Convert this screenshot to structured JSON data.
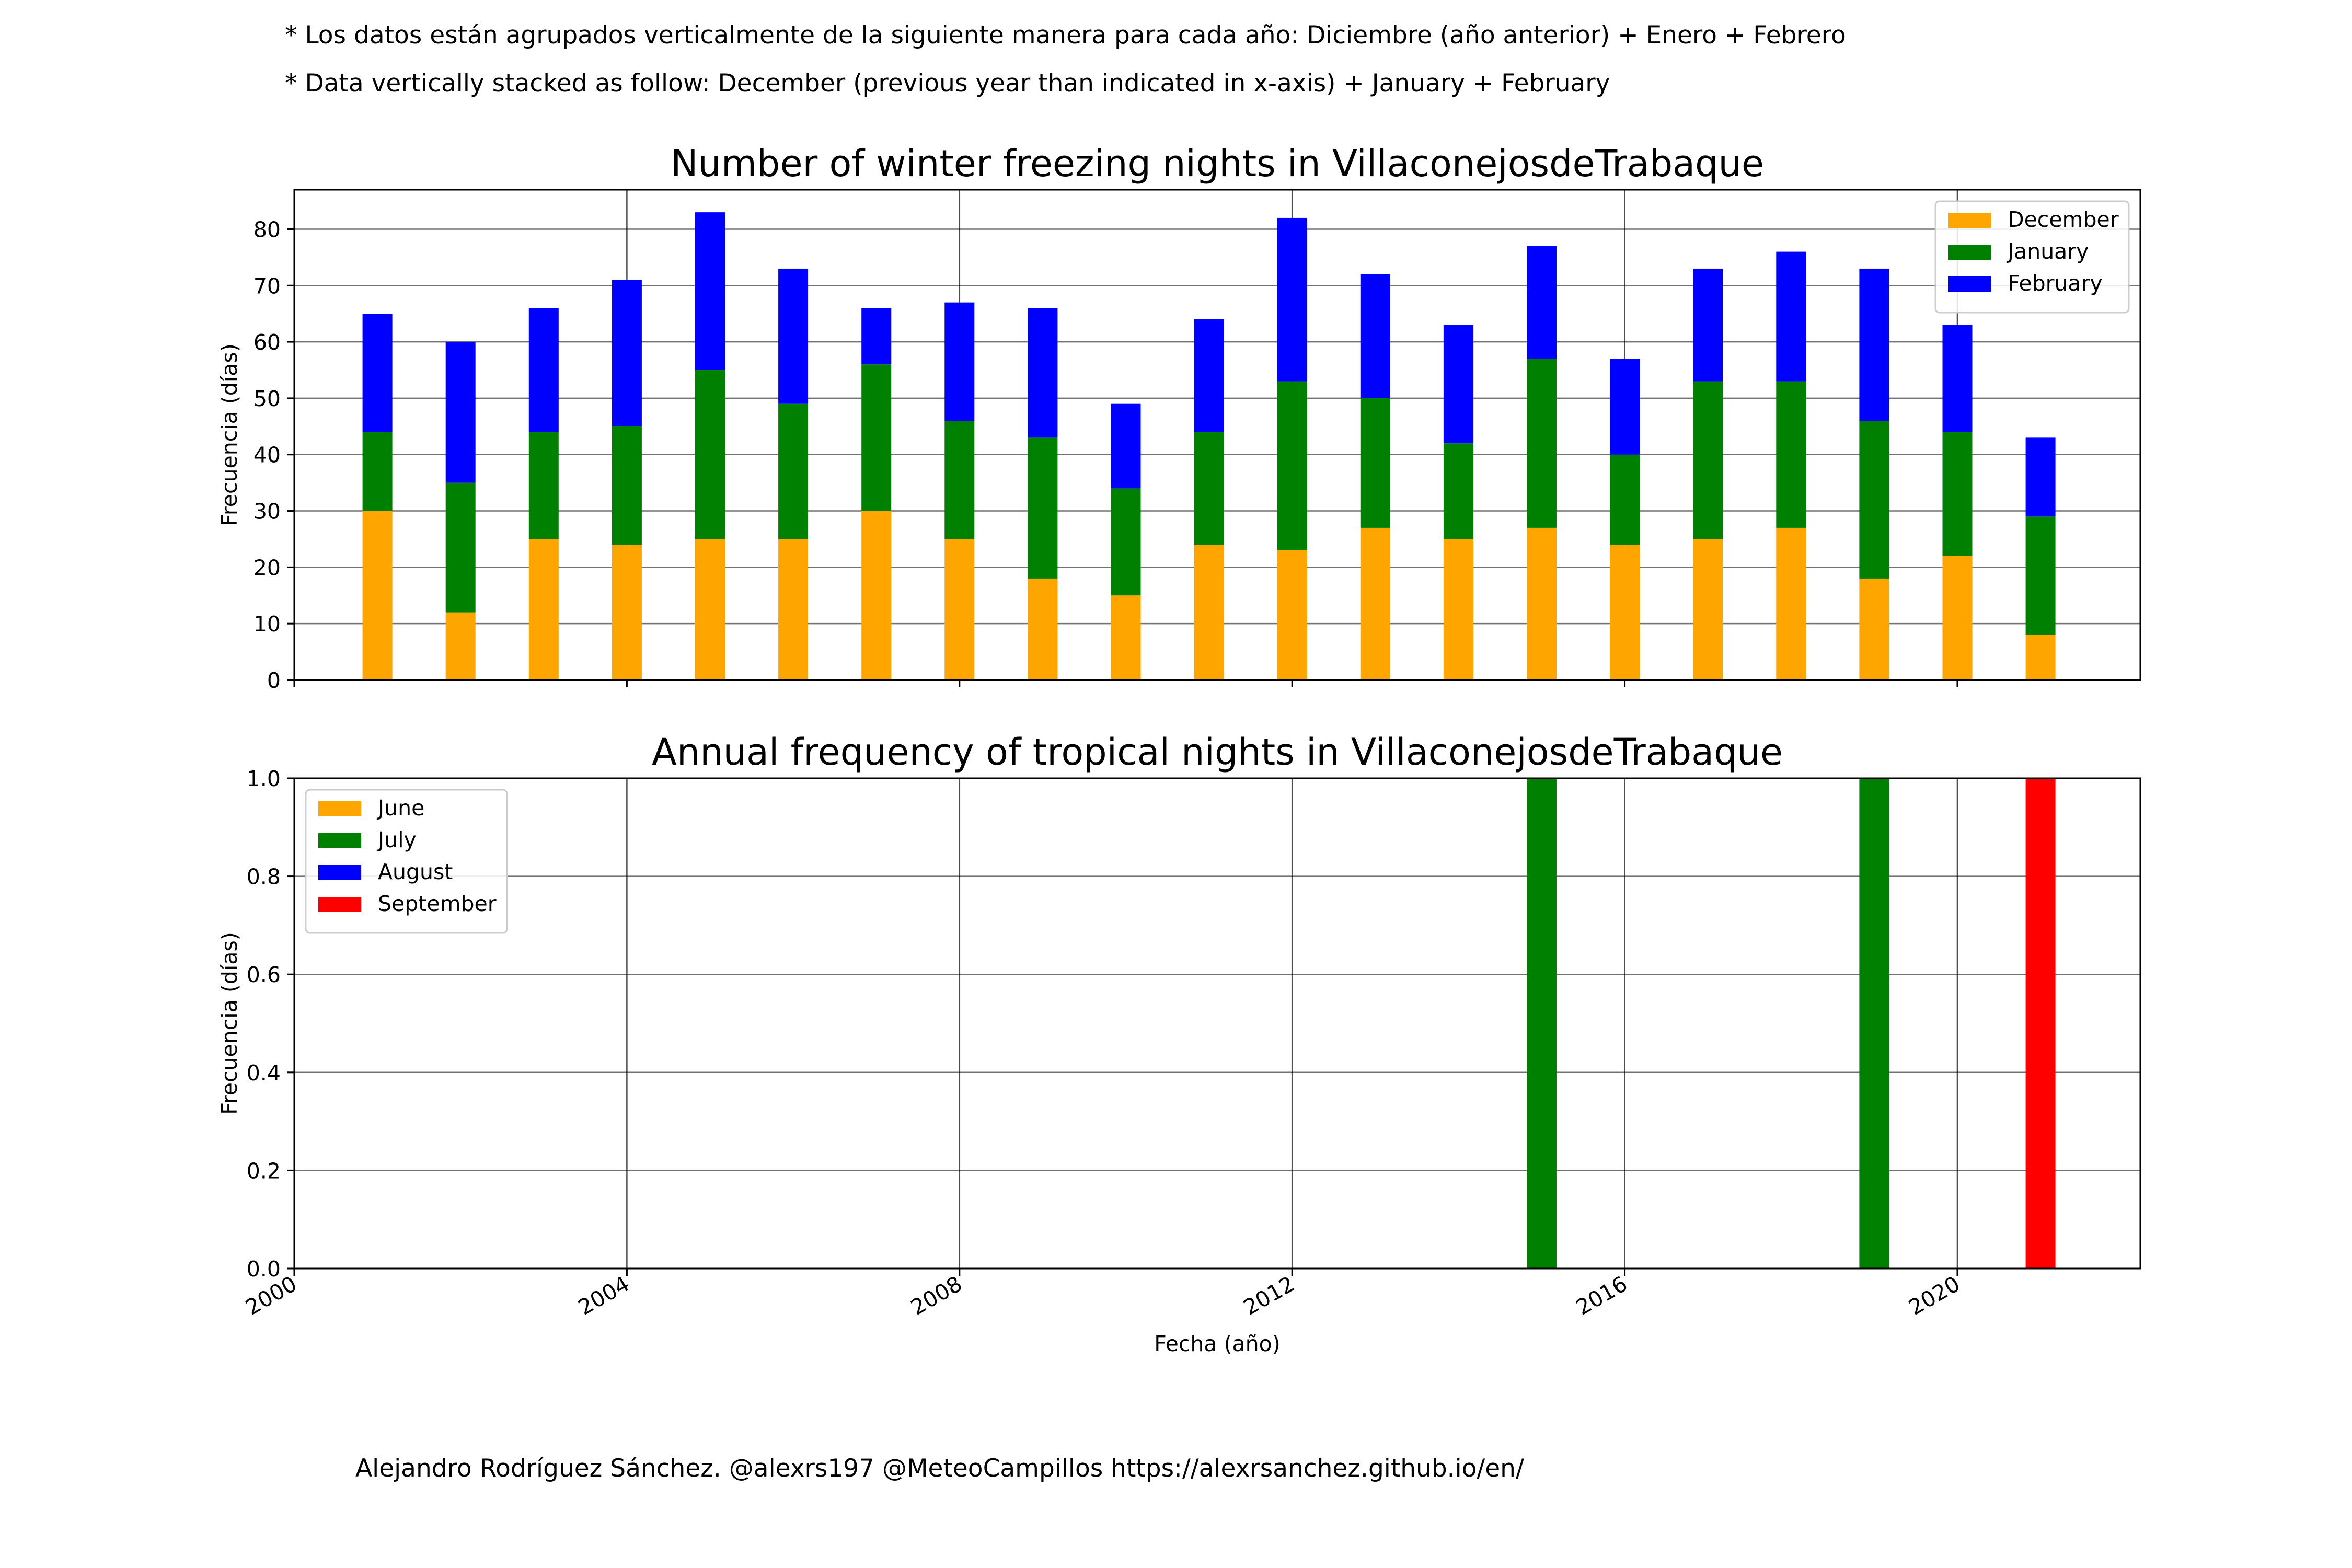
{
  "notes": {
    "line1": "* Los datos están agrupados verticalmente de la siguiente manera para cada año: Diciembre (año anterior) + Enero  + Febrero",
    "line2": "* Data vertically stacked as follow: December (previous year than indicated in x-axis) + January  + February"
  },
  "credit": "Alejandro Rodríguez Sánchez. @alexrs197 @MeteoCampillos   https://alexrsanchez.github.io/en/",
  "chart_data": [
    {
      "type": "bar",
      "stacked": true,
      "title": "Number of winter freezing nights in VillaconejosdeTrabaque",
      "xlabel": "",
      "ylabel": "Frecuencia (días)",
      "xlim": [
        2000,
        2022.2
      ],
      "ylim": [
        0,
        87
      ],
      "yticks": [
        0,
        10,
        20,
        30,
        40,
        50,
        60,
        70,
        80
      ],
      "xticks": [
        2000,
        2004,
        2008,
        2012,
        2016,
        2020
      ],
      "grid": true,
      "legend_position": "top-right",
      "x": [
        2001,
        2002,
        2003,
        2004,
        2005,
        2006,
        2007,
        2008,
        2009,
        2010,
        2011,
        2012,
        2013,
        2014,
        2015,
        2016,
        2017,
        2018,
        2019,
        2020,
        2021
      ],
      "series": [
        {
          "name": "December",
          "color": "#ffa500",
          "values": [
            30,
            12,
            25,
            24,
            25,
            25,
            30,
            25,
            18,
            15,
            24,
            23,
            27,
            25,
            27,
            24,
            25,
            27,
            18,
            22,
            8
          ]
        },
        {
          "name": "January",
          "color": "#008000",
          "values": [
            14,
            23,
            19,
            21,
            30,
            24,
            26,
            21,
            25,
            19,
            20,
            30,
            23,
            17,
            30,
            16,
            28,
            26,
            28,
            22,
            21
          ]
        },
        {
          "name": "February",
          "color": "#0000ff",
          "values": [
            21,
            25,
            22,
            26,
            28,
            24,
            10,
            21,
            23,
            15,
            20,
            29,
            22,
            21,
            20,
            17,
            20,
            23,
            27,
            19,
            14
          ]
        }
      ]
    },
    {
      "type": "bar",
      "stacked": true,
      "title": "Annual frequency of tropical nights in VillaconejosdeTrabaque",
      "xlabel": "Fecha (año)",
      "ylabel": "Frecuencia (días)",
      "xlim": [
        2000,
        2022.2
      ],
      "ylim": [
        0,
        1
      ],
      "yticks": [
        "0.0",
        "0.2",
        "0.4",
        "0.6",
        "0.8",
        "1.0"
      ],
      "xticks": [
        2000,
        2004,
        2008,
        2012,
        2016,
        2020
      ],
      "grid": true,
      "legend_position": "top-left",
      "x": [
        2015,
        2019,
        2021
      ],
      "series": [
        {
          "name": "June",
          "color": "#ffa500",
          "values": [
            0,
            0,
            0
          ]
        },
        {
          "name": "July",
          "color": "#008000",
          "values": [
            1,
            1,
            0
          ]
        },
        {
          "name": "August",
          "color": "#0000ff",
          "values": [
            0,
            0,
            0
          ]
        },
        {
          "name": "September",
          "color": "#ff0000",
          "values": [
            0,
            0,
            1
          ]
        }
      ]
    }
  ]
}
